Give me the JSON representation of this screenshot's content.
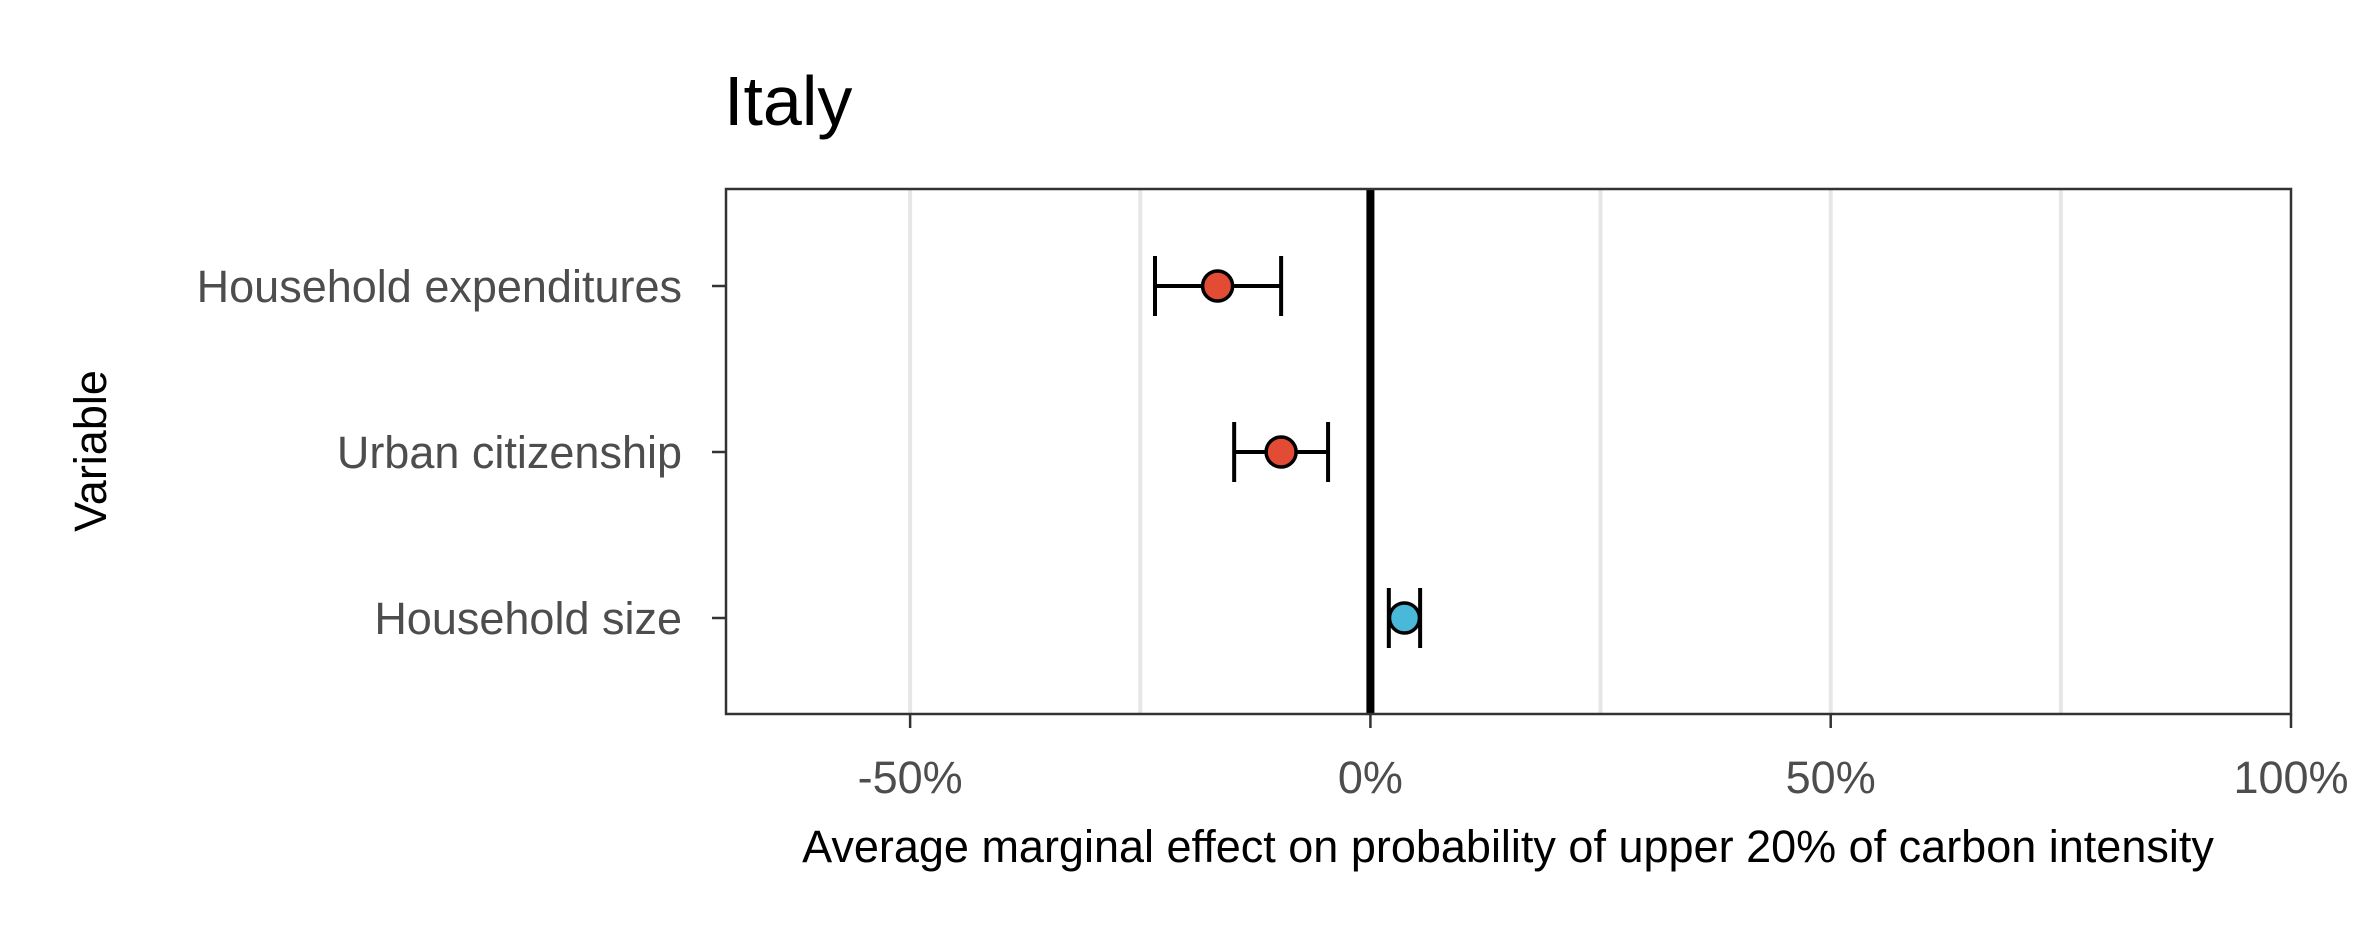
{
  "chart_data": {
    "type": "scatter",
    "title": "Italy",
    "xlabel": "Average marginal effect on probability of upper 20% of carbon intensity",
    "ylabel": "Variable",
    "xlim": [
      -0.7,
      1.0
    ],
    "xticks": [
      -0.5,
      0,
      0.5,
      1.0
    ],
    "xtick_labels": [
      "-50%",
      "0%",
      "50%",
      "100%"
    ],
    "reference_line": 0,
    "grid": "vertical",
    "legend": "none",
    "series": [
      {
        "categories": [
          "Household expenditures",
          "Urban citizenship",
          "Household size"
        ],
        "estimate": [
          -0.166,
          -0.097,
          0.037
        ],
        "ci_low": [
          -0.234,
          -0.148,
          0.02
        ],
        "ci_high": [
          -0.097,
          -0.046,
          0.054
        ],
        "colors": [
          "#e24b34",
          "#e24b34",
          "#4ab8d9"
        ]
      }
    ]
  }
}
